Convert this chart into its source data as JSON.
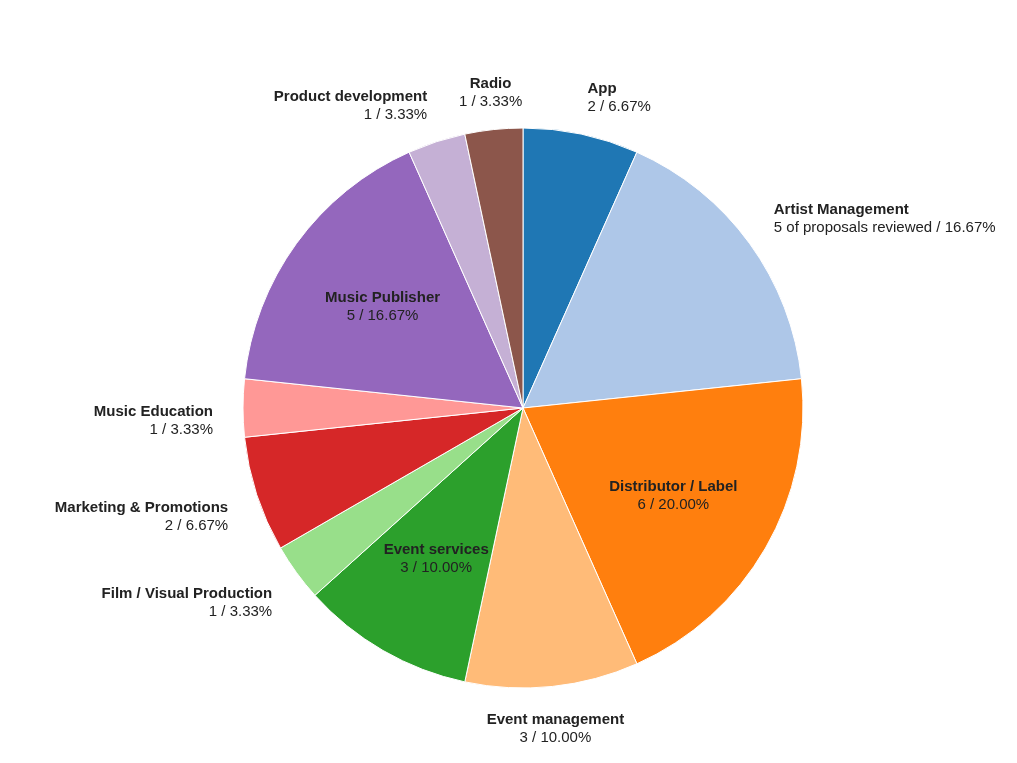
{
  "chart_data": {
    "type": "pie",
    "categories": [
      "App",
      "Artist Management",
      "Distributor / Label",
      "Event management",
      "Event services",
      "Film / Visual Production",
      "Marketing & Promotions",
      "Music Education",
      "Music Publisher",
      "Product development",
      "Radio"
    ],
    "values": [
      2,
      5,
      6,
      3,
      3,
      1,
      2,
      1,
      5,
      1,
      1
    ],
    "value_labels": [
      "2 / 6.67%",
      "5 of proposals reviewed / 16.67%",
      "6 / 20.00%",
      "3 / 10.00%",
      "3 / 10.00%",
      "1 / 3.33%",
      "2 / 6.67%",
      "1 / 3.33%",
      "5 / 16.67%",
      "1 / 3.33%",
      "1 / 3.33%"
    ],
    "colors": [
      "#1f77b4",
      "#aec7e8",
      "#ff7f0e",
      "#ffbb78",
      "#2ca02c",
      "#98df8a",
      "#d62728",
      "#ff9896",
      "#9467bd",
      "#c5b0d5",
      "#8c564b"
    ],
    "legend": false
  }
}
